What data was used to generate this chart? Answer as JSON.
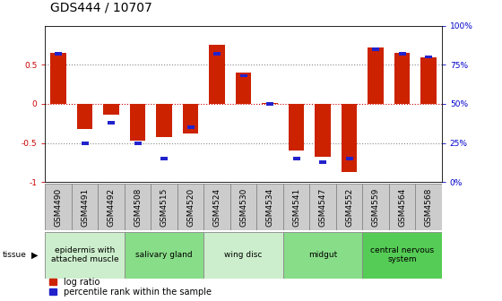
{
  "title": "GDS444 / 10707",
  "samples": [
    "GSM4490",
    "GSM4491",
    "GSM4492",
    "GSM4508",
    "GSM4515",
    "GSM4520",
    "GSM4524",
    "GSM4530",
    "GSM4534",
    "GSM4541",
    "GSM4547",
    "GSM4552",
    "GSM4559",
    "GSM4564",
    "GSM4568"
  ],
  "log_ratio": [
    0.65,
    -0.32,
    -0.14,
    -0.47,
    -0.43,
    -0.38,
    0.75,
    0.4,
    0.01,
    -0.6,
    -0.68,
    -0.87,
    0.72,
    0.65,
    0.6
  ],
  "percentile": [
    82,
    25,
    38,
    25,
    15,
    35,
    82,
    68,
    50,
    15,
    13,
    15,
    85,
    82,
    80
  ],
  "tissue_groups": [
    {
      "label": "epidermis with\nattached muscle",
      "start": 0,
      "end": 3,
      "color": "#cceecc"
    },
    {
      "label": "salivary gland",
      "start": 3,
      "end": 6,
      "color": "#88dd88"
    },
    {
      "label": "wing disc",
      "start": 6,
      "end": 9,
      "color": "#cceecc"
    },
    {
      "label": "midgut",
      "start": 9,
      "end": 12,
      "color": "#88dd88"
    },
    {
      "label": "central nervous\nsystem",
      "start": 12,
      "end": 15,
      "color": "#55cc55"
    }
  ],
  "bar_color_red": "#cc2200",
  "bar_color_blue": "#2222cc",
  "sample_box_color": "#cccccc",
  "ylim": [
    -1,
    1
  ],
  "background_color": "#ffffff",
  "title_fontsize": 10,
  "tick_fontsize": 6.5,
  "tissue_fontsize": 6.5,
  "legend_fontsize": 7
}
